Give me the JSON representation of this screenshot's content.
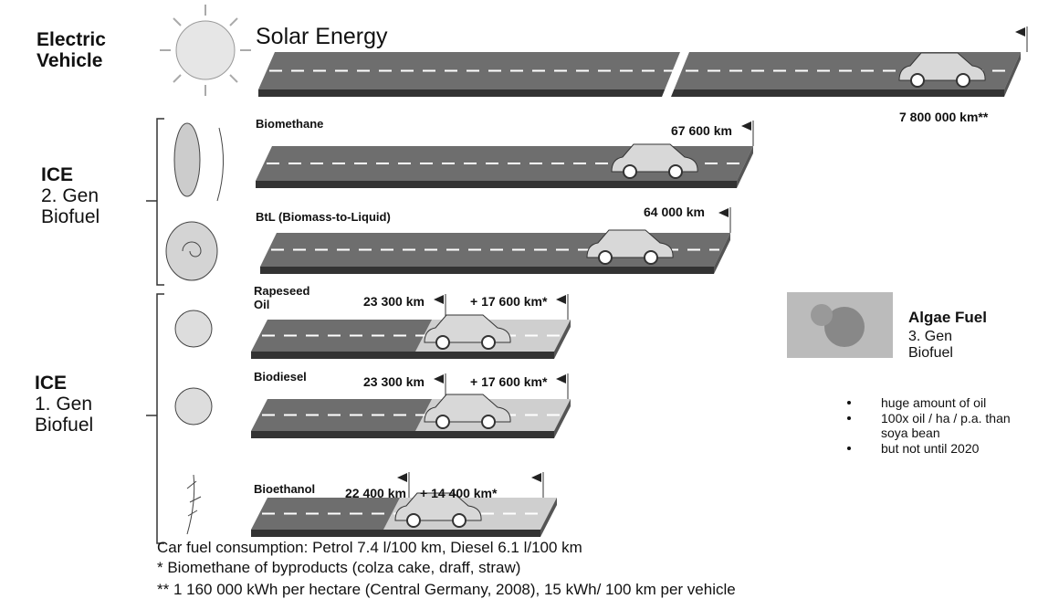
{
  "groups": [
    {
      "title": "Electric Vehicle"
    },
    {
      "title": "ICE",
      "subtitle": "2. Gen Biofuel"
    },
    {
      "title": "ICE",
      "subtitle": "1. Gen Biofuel"
    }
  ],
  "roads": [
    {
      "label": "Solar Energy",
      "distance": "7 800 000 km**"
    },
    {
      "label": "Biomethane",
      "distance": "67 600 km"
    },
    {
      "label": "BtL (Biomass-to-Liquid)",
      "distance": "64 000 km"
    },
    {
      "label": "Rapeseed Oil",
      "distance": "23 300 km",
      "extra": "+ 17 600 km*"
    },
    {
      "label": "Biodiesel",
      "distance": "23 300 km",
      "extra": "+ 17 600 km*"
    },
    {
      "label": "Bioethanol",
      "distance": "22 400 km",
      "extra": "+ 14 400 km*"
    }
  ],
  "algae": {
    "title": "Algae Fuel",
    "subtitle": "3. Gen Biofuel",
    "bullets": [
      "huge amount of oil",
      "100x oil / ha / p.a. than soya bean",
      "but not until 2020"
    ]
  },
  "footnotes": [
    "Car fuel consumption: Petrol 7.4 l/100 km, Diesel 6.1 l/100 km",
    "* Biomethane of byproducts (colza cake, draff, straw)",
    "** 1 160 000 kWh per hectare (Central Germany, 2008), 15 kWh/ 100 km per vehicle"
  ]
}
